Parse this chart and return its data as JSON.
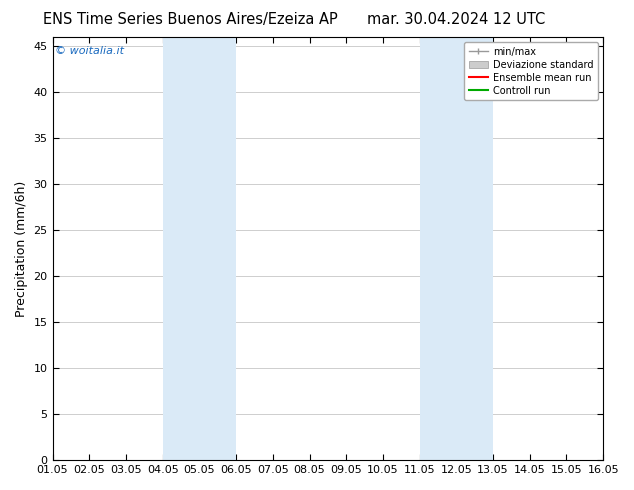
{
  "title_left": "ENS Time Series Buenos Aires/Ezeiza AP",
  "title_right": "mar. 30.04.2024 12 UTC",
  "ylabel": "Precipitation (mm/6h)",
  "ylim": [
    0,
    46
  ],
  "yticks": [
    0,
    5,
    10,
    15,
    20,
    25,
    30,
    35,
    40,
    45
  ],
  "xlim": [
    0,
    15
  ],
  "xtick_positions": [
    0,
    1,
    2,
    3,
    4,
    5,
    6,
    7,
    8,
    9,
    10,
    11,
    12,
    13,
    14,
    15
  ],
  "xtick_labels": [
    "01.05",
    "02.05",
    "03.05",
    "04.05",
    "05.05",
    "06.05",
    "07.05",
    "08.05",
    "09.05",
    "10.05",
    "11.05",
    "12.05",
    "13.05",
    "14.05",
    "15.05",
    "16.05"
  ],
  "shade_regions": [
    [
      3.0,
      4.0
    ],
    [
      4.0,
      5.0
    ],
    [
      10.0,
      11.0
    ],
    [
      11.0,
      12.0
    ]
  ],
  "shade_color": "#daeaf7",
  "watermark": "© woitalia.it",
  "watermark_color": "#1a6abf",
  "legend_entries": [
    "min/max",
    "Deviazione standard",
    "Ensemble mean run",
    "Controll run"
  ],
  "legend_colors": [
    "#aaaaaa",
    "#cccccc",
    "#ff0000",
    "#00aa00"
  ],
  "background_color": "#ffffff",
  "plot_bg_color": "#ffffff",
  "title_fontsize": 10.5,
  "axis_fontsize": 9,
  "tick_fontsize": 8
}
